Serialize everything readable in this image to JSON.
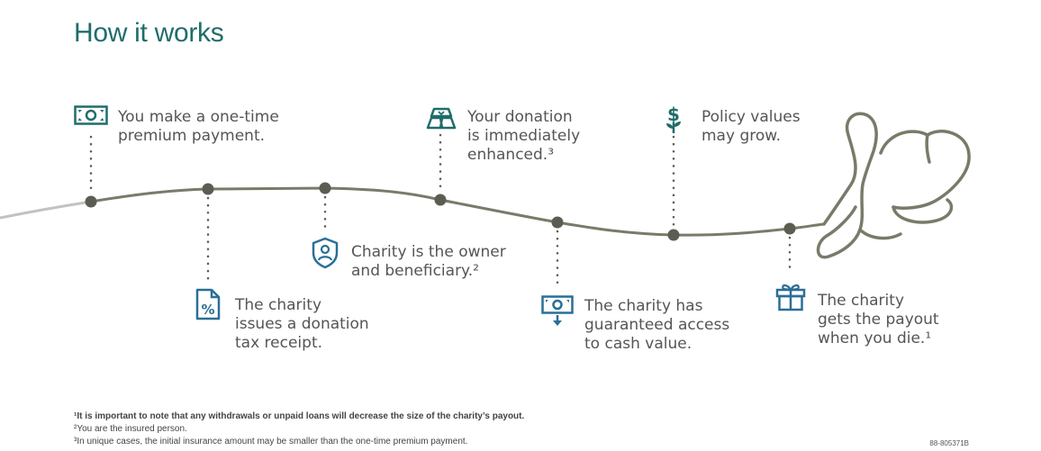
{
  "title": "How it works",
  "colors": {
    "teal": "#1f6d6a",
    "blue": "#2a6f97",
    "line": "#7a7a6a",
    "dot": "#5c5c52",
    "gray_line": "#c2c2c2"
  },
  "steps": [
    {
      "icon": "cash-icon",
      "lines": [
        "You make a one-time",
        "premium payment."
      ]
    },
    {
      "icon": "tax-receipt-icon",
      "lines": [
        "The charity",
        "issues a donation",
        "tax receipt."
      ]
    },
    {
      "icon": "shield-person-icon",
      "lines": [
        "Charity is the owner",
        "and beneficiary.²"
      ]
    },
    {
      "icon": "gold-bars-icon",
      "lines": [
        "Your donation",
        "is immediately",
        "enhanced.³"
      ]
    },
    {
      "icon": "cash-withdraw-icon",
      "lines": [
        "The charity has",
        "guaranteed access",
        "to cash value."
      ]
    },
    {
      "icon": "dollar-plant-icon",
      "lines": [
        "Policy values",
        "may grow."
      ]
    },
    {
      "icon": "gift-icon",
      "lines": [
        "The charity",
        "gets the payout",
        "when you die.¹"
      ]
    }
  ],
  "footnotes": {
    "note1": "¹It is important to note that any withdrawals or unpaid loans will decrease the size of the charity’s payout.",
    "note2": "²You are the insured person.",
    "note3": "³In unique cases, the initial insurance amount may be smaller than the one-time premium payment."
  },
  "doc_code": "88-805371B"
}
